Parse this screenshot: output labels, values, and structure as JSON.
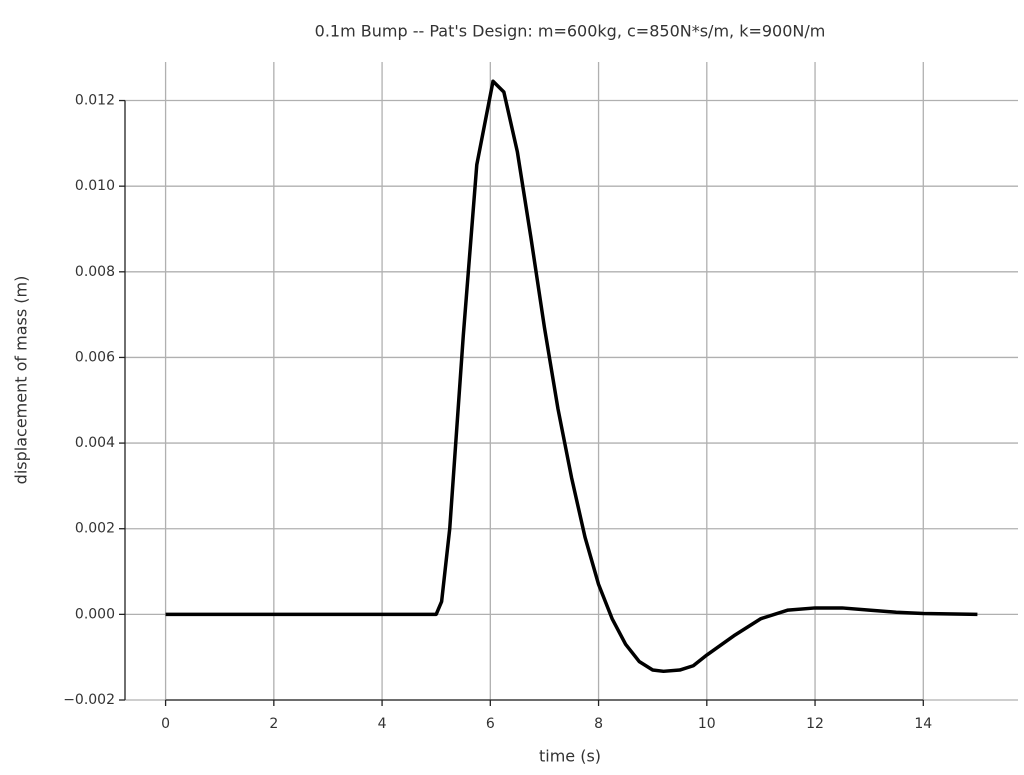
{
  "chart_data": {
    "type": "line",
    "title": "0.1m Bump -- Pat's Design: m=600kg, c=850N*s/m, k=900N/m",
    "x_label": "time (s)",
    "y_label": "displacement of mass (m)",
    "x": [
      0,
      5,
      5.1,
      5.25,
      5.5,
      5.75,
      6.05,
      6.25,
      6.5,
      6.75,
      7,
      7.25,
      7.5,
      7.75,
      8,
      8.25,
      8.5,
      8.75,
      9,
      9.2,
      9.5,
      9.75,
      10,
      10.5,
      11,
      11.5,
      12,
      12.5,
      13,
      13.5,
      14,
      15
    ],
    "series": [
      {
        "name": "displacement",
        "color": "#000000",
        "values": [
          0,
          0,
          0.0003,
          0.002,
          0.0065,
          0.0105,
          0.01245,
          0.0122,
          0.0108,
          0.0088,
          0.0067,
          0.0048,
          0.0032,
          0.0018,
          0.0007,
          -0.0001,
          -0.0007,
          -0.0011,
          -0.0013,
          -0.00133,
          -0.0013,
          -0.0012,
          -0.00095,
          -0.0005,
          -0.0001,
          0.0001,
          0.00015,
          0.00015,
          0.0001,
          5e-05,
          2e-05,
          0
        ]
      }
    ],
    "xlim": [
      -0.75,
      15.75
    ],
    "ylim": [
      -0.002,
      0.0129
    ],
    "xticks": [
      0,
      2,
      4,
      6,
      8,
      10,
      12,
      14
    ],
    "yticks": [
      {
        "value": -0.002,
        "label": "−0.002"
      },
      {
        "value": 0,
        "label": "0.000"
      },
      {
        "value": 0.002,
        "label": "0.002"
      },
      {
        "value": 0.004,
        "label": "0.004"
      },
      {
        "value": 0.006,
        "label": "0.006"
      },
      {
        "value": 0.008,
        "label": "0.008"
      },
      {
        "value": 0.01,
        "label": "0.010"
      },
      {
        "value": 0.012,
        "label": "0.012"
      }
    ],
    "grid": true
  }
}
